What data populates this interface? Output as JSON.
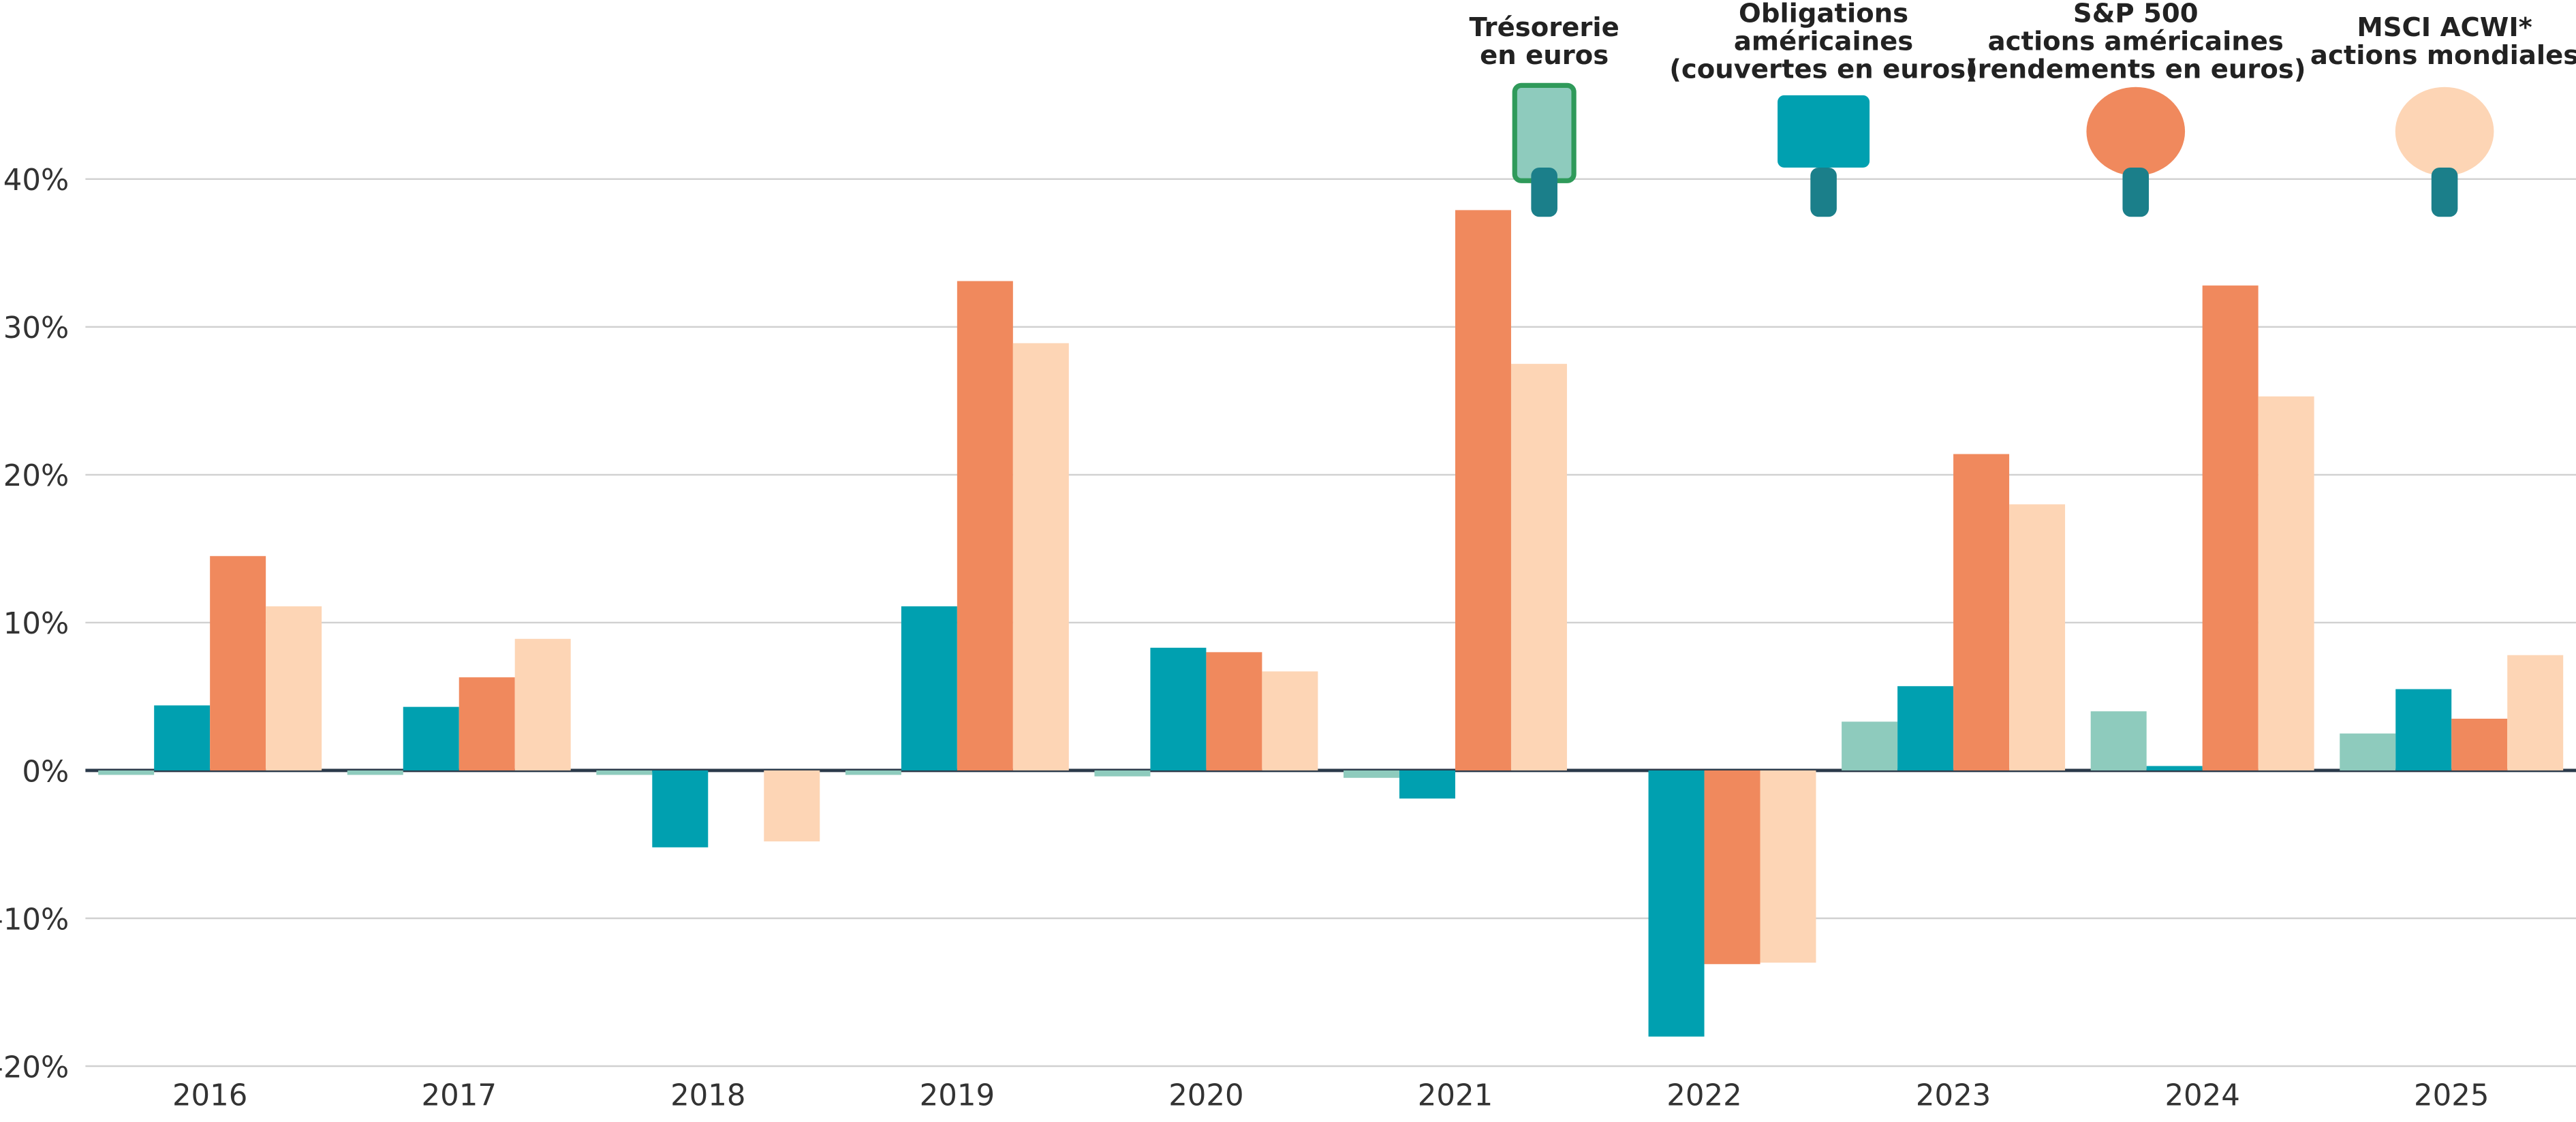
{
  "chart_data": {
    "type": "bar",
    "categories": [
      "2016",
      "2017",
      "2018",
      "2019",
      "2020",
      "2021",
      "2022",
      "2023",
      "2024",
      "2025"
    ],
    "series": [
      {
        "name": "Trésorerie en euros",
        "color": "#8ecbbd",
        "values": [
          -0.3,
          -0.3,
          -0.3,
          -0.3,
          -0.4,
          -0.5,
          0,
          3.3,
          4.0,
          2.5
        ]
      },
      {
        "name": "Obligations américaines (couvertes en euros)",
        "color": "#00a0b0",
        "values": [
          4.4,
          4.3,
          -5.2,
          11.1,
          8.3,
          -1.9,
          -18.0,
          5.7,
          0.3,
          5.5
        ]
      },
      {
        "name": "S&P 500 actions américaines (rendements en euros)",
        "color": "#f0895d",
        "values": [
          14.5,
          6.3,
          0,
          33.1,
          8.0,
          37.9,
          -13.1,
          21.4,
          32.8,
          3.5
        ]
      },
      {
        "name": "MSCI ACWI* actions mondiales",
        "color": "#fdd5b5",
        "values": [
          11.1,
          8.9,
          -4.8,
          28.9,
          6.7,
          27.5,
          -13.0,
          18.0,
          25.3,
          7.8
        ]
      }
    ],
    "ylim": [
      -20,
      45
    ],
    "yticks": [
      {
        "value": -20,
        "label": "-20%"
      },
      {
        "value": -10,
        "label": "-10%"
      },
      {
        "value": 0,
        "label": "0%"
      },
      {
        "value": 10,
        "label": "10%"
      },
      {
        "value": 20,
        "label": "20%"
      },
      {
        "value": 30,
        "label": "30%"
      },
      {
        "value": 40,
        "label": "40%"
      }
    ],
    "grid": true
  }
}
